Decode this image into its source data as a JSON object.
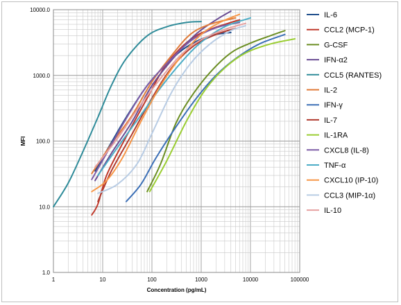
{
  "chart_data": {
    "type": "line",
    "xlabel": "Concentration (pg/mL)",
    "ylabel": "MFI",
    "x_scale": "log",
    "y_scale": "log",
    "xlim": [
      1,
      100000
    ],
    "ylim": [
      1,
      10000
    ],
    "x_ticks": [
      "1",
      "10",
      "100",
      "1000",
      "10000",
      "100000"
    ],
    "y_ticks": [
      "1.0",
      "10.0",
      "100.0",
      "1000.0",
      "10000.0"
    ],
    "grid": true,
    "legend_position": "right",
    "series": [
      {
        "name": "IL-6",
        "color": "#1f4e8c",
        "points": [
          [
            7,
            35
          ],
          [
            15,
            95
          ],
          [
            30,
            230
          ],
          [
            80,
            700
          ],
          [
            200,
            1500
          ],
          [
            500,
            2700
          ],
          [
            1500,
            4000
          ],
          [
            4000,
            4500
          ]
        ]
      },
      {
        "name": "CCL2 (MCP-1)",
        "color": "#c0392b",
        "points": [
          [
            6,
            7.5
          ],
          [
            8,
            11
          ],
          [
            12,
            30
          ],
          [
            25,
            90
          ],
          [
            80,
            450
          ],
          [
            200,
            1500
          ],
          [
            600,
            3500
          ],
          [
            1500,
            5000
          ],
          [
            3500,
            6200
          ],
          [
            6000,
            7000
          ]
        ]
      },
      {
        "name": "G-CSF",
        "color": "#6b8e23",
        "points": [
          [
            80,
            17
          ],
          [
            150,
            45
          ],
          [
            300,
            180
          ],
          [
            600,
            450
          ],
          [
            1500,
            1100
          ],
          [
            4000,
            2200
          ],
          [
            10000,
            3100
          ],
          [
            25000,
            4000
          ],
          [
            50000,
            4800
          ]
        ]
      },
      {
        "name": "IFN-α2",
        "color": "#6a4c93",
        "points": [
          [
            7,
            25
          ],
          [
            15,
            65
          ],
          [
            40,
            200
          ],
          [
            100,
            700
          ],
          [
            300,
            2000
          ],
          [
            800,
            4300
          ],
          [
            2000,
            7000
          ],
          [
            4000,
            9500
          ]
        ]
      },
      {
        "name": "CCL5 (RANTES)",
        "color": "#2e8b99",
        "points": [
          [
            1,
            10
          ],
          [
            2,
            23
          ],
          [
            4,
            70
          ],
          [
            8,
            230
          ],
          [
            15,
            700
          ],
          [
            30,
            1800
          ],
          [
            80,
            4000
          ],
          [
            200,
            5500
          ],
          [
            500,
            6400
          ],
          [
            1000,
            6600
          ]
        ]
      },
      {
        "name": "IL-2",
        "color": "#e07b39",
        "points": [
          [
            6,
            32
          ],
          [
            15,
            90
          ],
          [
            40,
            250
          ],
          [
            100,
            800
          ],
          [
            250,
            2000
          ],
          [
            600,
            4200
          ],
          [
            1500,
            6000
          ],
          [
            5000,
            7500
          ]
        ]
      },
      {
        "name": "IFN-γ",
        "color": "#3b6fb6",
        "points": [
          [
            30,
            12
          ],
          [
            60,
            22
          ],
          [
            120,
            55
          ],
          [
            300,
            160
          ],
          [
            800,
            450
          ],
          [
            2000,
            1000
          ],
          [
            5000,
            1800
          ],
          [
            15000,
            3000
          ],
          [
            50000,
            4200
          ]
        ]
      },
      {
        "name": "IL-7",
        "color": "#b03a2e",
        "points": [
          [
            8,
            12
          ],
          [
            15,
            35
          ],
          [
            40,
            130
          ],
          [
            100,
            450
          ],
          [
            250,
            1300
          ],
          [
            700,
            2800
          ],
          [
            2000,
            4200
          ],
          [
            5000,
            5200
          ]
        ]
      },
      {
        "name": "IL-1RA",
        "color": "#9acd32",
        "points": [
          [
            90,
            17
          ],
          [
            200,
            50
          ],
          [
            500,
            200
          ],
          [
            1200,
            600
          ],
          [
            3000,
            1300
          ],
          [
            8000,
            2200
          ],
          [
            25000,
            3000
          ],
          [
            80000,
            3600
          ]
        ]
      },
      {
        "name": "CXCL8 (IL-8)",
        "color": "#7d5ba6",
        "points": [
          [
            6,
            26
          ],
          [
            12,
            65
          ],
          [
            30,
            220
          ],
          [
            80,
            700
          ],
          [
            250,
            1800
          ],
          [
            700,
            3600
          ],
          [
            2000,
            5300
          ],
          [
            6000,
            6400
          ]
        ]
      },
      {
        "name": "TNF-α",
        "color": "#4bacc6",
        "points": [
          [
            8,
            30
          ],
          [
            20,
            80
          ],
          [
            60,
            250
          ],
          [
            150,
            650
          ],
          [
            400,
            1600
          ],
          [
            1000,
            3200
          ],
          [
            3000,
            5500
          ],
          [
            10000,
            7500
          ]
        ]
      },
      {
        "name": "CXCL10 (IP-10)",
        "color": "#f79646",
        "points": [
          [
            6,
            17
          ],
          [
            12,
            25
          ],
          [
            25,
            55
          ],
          [
            60,
            200
          ],
          [
            150,
            700
          ],
          [
            400,
            2000
          ],
          [
            1000,
            4200
          ],
          [
            2500,
            6500
          ],
          [
            6000,
            8500
          ]
        ]
      },
      {
        "name": "CCL3 (MIP-1α)",
        "color": "#b8cce4",
        "points": [
          [
            8,
            16
          ],
          [
            20,
            22
          ],
          [
            50,
            45
          ],
          [
            100,
            130
          ],
          [
            250,
            550
          ],
          [
            600,
            1500
          ],
          [
            1500,
            3000
          ],
          [
            4000,
            4800
          ],
          [
            8000,
            5700
          ]
        ]
      },
      {
        "name": "IL-10",
        "color": "#e6a0a0",
        "points": [
          [
            7,
            40
          ],
          [
            20,
            110
          ],
          [
            50,
            300
          ],
          [
            150,
            900
          ],
          [
            400,
            2100
          ],
          [
            1000,
            3500
          ],
          [
            3000,
            5000
          ],
          [
            8000,
            6200
          ]
        ]
      }
    ]
  }
}
